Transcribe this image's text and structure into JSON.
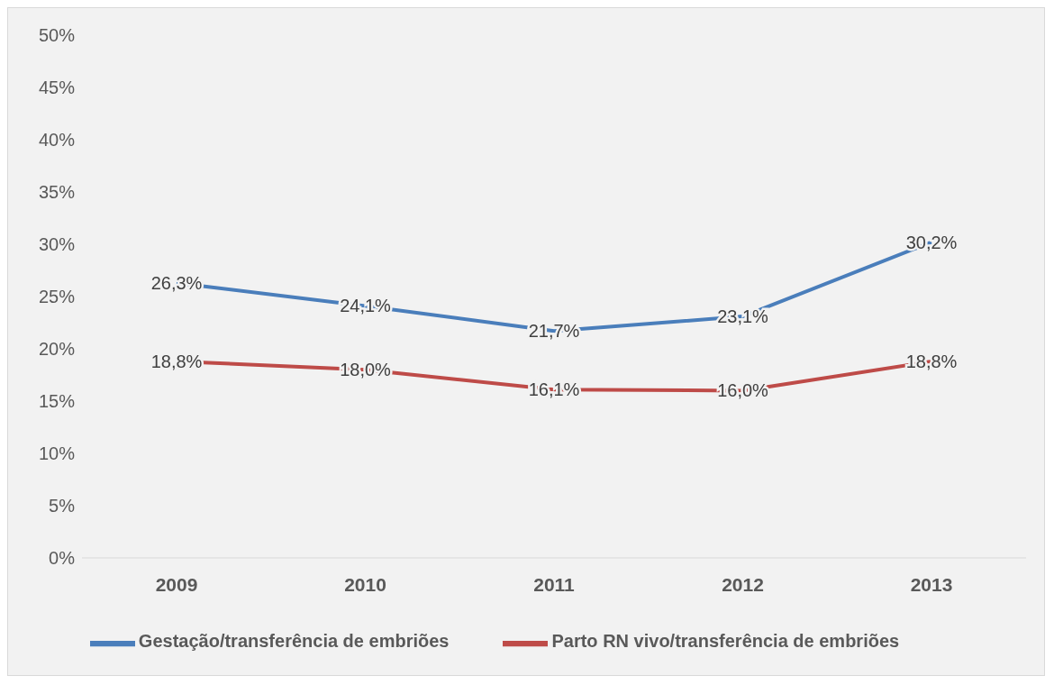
{
  "chart_data": {
    "type": "line",
    "categories": [
      "2009",
      "2010",
      "2011",
      "2012",
      "2013"
    ],
    "series": [
      {
        "name": "Gestação/transferência de embriões",
        "color": "#4a7ebb",
        "values": [
          26.3,
          24.1,
          21.7,
          23.1,
          30.2
        ],
        "value_labels": [
          "26,3%",
          "24,1%",
          "21,7%",
          "23,1%",
          "30,2%"
        ]
      },
      {
        "name": "Parto RN vivo/transferência de embriões",
        "color": "#be4b48",
        "values": [
          18.8,
          18.0,
          16.1,
          16.0,
          18.8
        ],
        "value_labels": [
          "18,8%",
          "18,0%",
          "16,1%",
          "16,0%",
          "18,8%"
        ]
      }
    ],
    "ylim": [
      0,
      50
    ],
    "yticks": [
      {
        "value": 0,
        "label": "0%"
      },
      {
        "value": 5,
        "label": "5%"
      },
      {
        "value": 10,
        "label": "10%"
      },
      {
        "value": 15,
        "label": "15%"
      },
      {
        "value": 20,
        "label": "20%"
      },
      {
        "value": 25,
        "label": "25%"
      },
      {
        "value": 30,
        "label": "30%"
      },
      {
        "value": 35,
        "label": "35%"
      },
      {
        "value": 40,
        "label": "40%"
      },
      {
        "value": 45,
        "label": "45%"
      },
      {
        "value": 50,
        "label": "50%"
      }
    ],
    "legend": "bottom",
    "marker": "none",
    "line_style": "solid"
  }
}
